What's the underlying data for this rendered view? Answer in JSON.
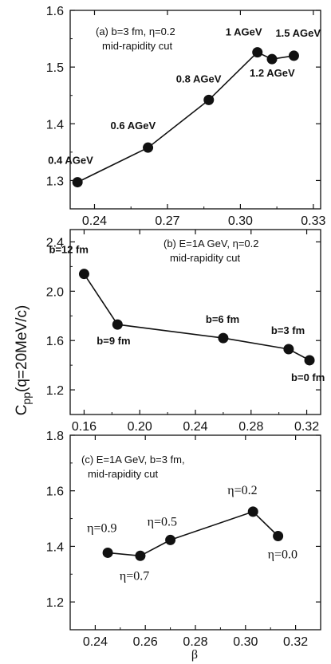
{
  "figure": {
    "ylabel_main": "C",
    "ylabel_sub": "pp",
    "ylabel_rest": "(q=20MeV/c)",
    "xlabel": "β"
  },
  "chart_data": [
    {
      "type": "line",
      "annotation_lines": [
        "(a) b=3 fm, η=0.2",
        "mid-rapidity cut"
      ],
      "xlim": [
        0.23,
        0.333
      ],
      "ylim": [
        1.25,
        1.6
      ],
      "xticks": [
        0.24,
        0.27,
        0.3,
        0.33
      ],
      "xtick_labels": [
        "0.24",
        "0.27",
        "0.30",
        "0.33"
      ],
      "yticks": [
        1.3,
        1.4,
        1.5,
        1.6
      ],
      "ytick_labels": [
        "1.3",
        "1.4",
        "1.5",
        "1.6"
      ],
      "points": [
        {
          "x": 0.233,
          "y": 1.297,
          "label": "0.4 AGeV"
        },
        {
          "x": 0.262,
          "y": 1.358,
          "label": "0.6 AGeV"
        },
        {
          "x": 0.287,
          "y": 1.442,
          "label": "0.8 AGeV"
        },
        {
          "x": 0.307,
          "y": 1.526,
          "label": "1 AGeV"
        },
        {
          "x": 0.313,
          "y": 1.514,
          "label": "1.2 AGeV"
        },
        {
          "x": 0.322,
          "y": 1.52,
          "label": "1.5 AGeV"
        }
      ],
      "label_font": "bold"
    },
    {
      "type": "line",
      "annotation_lines": [
        "(b) E=1A GeV, η=0.2",
        "mid-rapidity cut"
      ],
      "xlim": [
        0.15,
        0.33
      ],
      "ylim": [
        1.0,
        2.5
      ],
      "xticks": [
        0.16,
        0.2,
        0.24,
        0.28,
        0.32
      ],
      "xtick_labels": [
        "0.16",
        "0.20",
        "0.24",
        "0.28",
        "0.32"
      ],
      "yticks": [
        1.2,
        1.6,
        2.0,
        2.4
      ],
      "ytick_labels": [
        "1.2",
        "1.6",
        "2.0",
        "2.4"
      ],
      "points": [
        {
          "x": 0.16,
          "y": 2.14,
          "label": "b=12 fm"
        },
        {
          "x": 0.184,
          "y": 1.73,
          "label": "b=9 fm"
        },
        {
          "x": 0.26,
          "y": 1.62,
          "label": "b=6 fm"
        },
        {
          "x": 0.307,
          "y": 1.53,
          "label": "b=3 fm"
        },
        {
          "x": 0.322,
          "y": 1.44,
          "label": "b=0 fm"
        }
      ],
      "label_font": "bold"
    },
    {
      "type": "line",
      "annotation_lines": [
        "(c) E=1A GeV, b=3 fm,",
        "mid-rapidity cut"
      ],
      "xlim": [
        0.23,
        0.33
      ],
      "ylim": [
        1.1,
        1.8
      ],
      "xticks": [
        0.24,
        0.26,
        0.28,
        0.3,
        0.32
      ],
      "xtick_labels": [
        "0.24",
        "0.26",
        "0.28",
        "0.30",
        "0.32"
      ],
      "yticks": [
        1.2,
        1.4,
        1.6,
        1.8
      ],
      "ytick_labels": [
        "1.2",
        "1.4",
        "1.6",
        "1.8"
      ],
      "points": [
        {
          "x": 0.245,
          "y": 1.377,
          "label": "η=0.9"
        },
        {
          "x": 0.258,
          "y": 1.366,
          "label": "η=0.7"
        },
        {
          "x": 0.27,
          "y": 1.423,
          "label": "η=0.5"
        },
        {
          "x": 0.303,
          "y": 1.525,
          "label": "η=0.2"
        },
        {
          "x": 0.313,
          "y": 1.437,
          "label": "η=0.0"
        }
      ],
      "label_font": "serif"
    }
  ]
}
